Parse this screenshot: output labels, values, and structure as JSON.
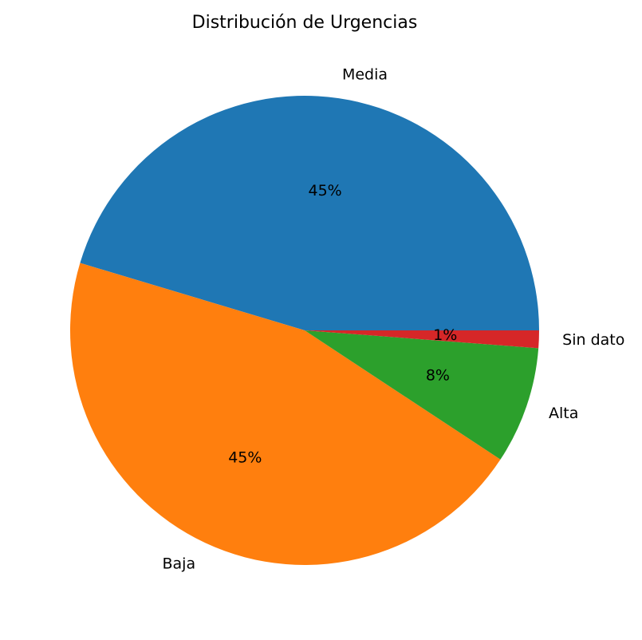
{
  "chart_data": {
    "type": "pie",
    "title": "Distribución de Urgencias",
    "slices": [
      {
        "label": "Media",
        "value": 45,
        "pct_label": "45%",
        "color": "#1f77b4"
      },
      {
        "label": "Baja",
        "value": 45,
        "pct_label": "45%",
        "color": "#ff7f0e"
      },
      {
        "label": "Alta",
        "value": 8,
        "pct_label": "8%",
        "color": "#2ca02c"
      },
      {
        "label": "Sin dato",
        "value": 1.2,
        "pct_label": "1%",
        "color": "#d62728"
      }
    ],
    "start_angle_deg": 0,
    "direction": "counterclockwise",
    "legend": "none"
  }
}
